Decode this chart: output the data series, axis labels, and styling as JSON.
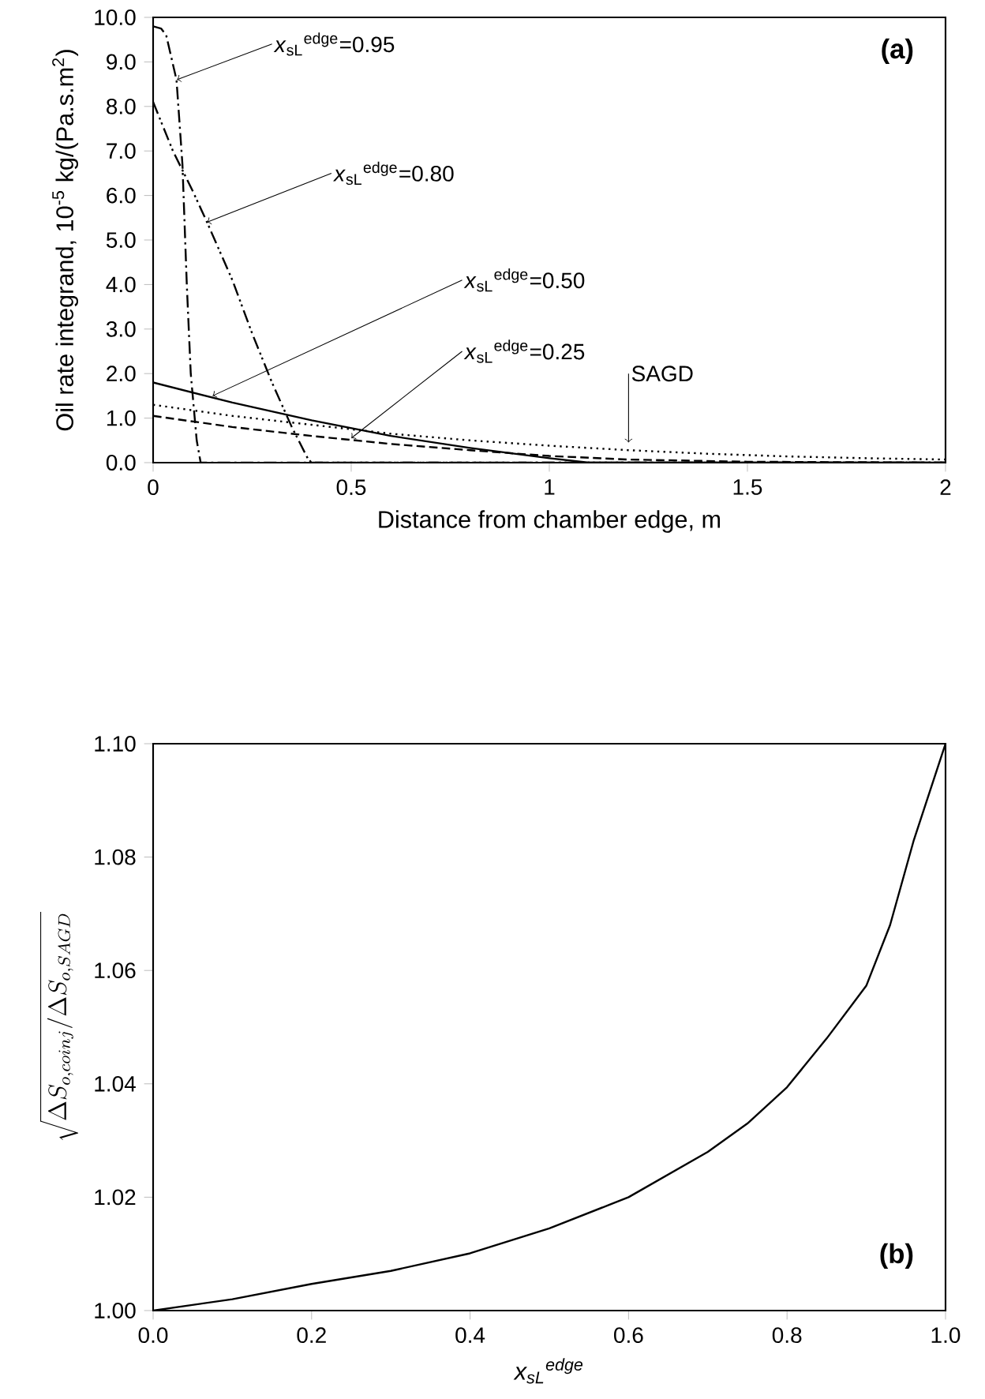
{
  "chart_data": [
    {
      "type": "line",
      "xlabel": "Distance from chamber edge, m",
      "ylabel": "Oil rate integrand, 10$^{-5}$ kg/(Pa.s.m$^{2}$)",
      "xlim": [
        0,
        2
      ],
      "ylim": [
        0,
        10
      ],
      "xticks": [
        0,
        0.5,
        1,
        1.5,
        2
      ],
      "yticks": [
        {
          "value": 0,
          "label": "0.0"
        },
        {
          "value": 1,
          "label": "1.0"
        },
        {
          "value": 2,
          "label": "2.0"
        },
        {
          "value": 3,
          "label": "3.0"
        },
        {
          "value": 4,
          "label": "4.0"
        },
        {
          "value": 5,
          "label": "5.0"
        },
        {
          "value": 6,
          "label": "6.0"
        },
        {
          "value": 7,
          "label": "7.0"
        },
        {
          "value": 8,
          "label": "8.0"
        },
        {
          "value": 9,
          "label": "9.0"
        },
        {
          "value": 10,
          "label": "10.0"
        }
      ],
      "series": [
        {
          "color": "#000000",
          "line_style": "dashdot",
          "x": [
            0,
            0.02,
            0.033,
            0.059,
            0.074,
            0.085,
            0.095,
            0.11,
            0.12,
            2
          ],
          "values": [
            9.8,
            9.75,
            9.6,
            8.6,
            6.7,
            4.0,
            2.0,
            0.5,
            0,
            0
          ]
        },
        {
          "color": "#000000",
          "line_style": "dashdotdot",
          "x": [
            0,
            0.05,
            0.1,
            0.136,
            0.2,
            0.25,
            0.3,
            0.35,
            0.39,
            0.4,
            2
          ],
          "values": [
            8.1,
            7.0,
            6.1,
            5.4,
            4.1,
            2.9,
            1.8,
            0.8,
            0.1,
            0,
            0
          ]
        },
        {
          "color": "#000000",
          "line_style": "solid",
          "x": [
            0,
            0.2,
            0.4,
            0.6,
            0.8,
            1.0,
            1.1,
            2
          ],
          "values": [
            1.8,
            1.35,
            0.95,
            0.6,
            0.33,
            0.1,
            0,
            0
          ]
        },
        {
          "color": "#000000",
          "line_style": "dashed",
          "x": [
            0,
            0.2,
            0.4,
            0.6,
            0.8,
            1.0,
            1.2,
            1.5,
            2
          ],
          "values": [
            1.05,
            0.8,
            0.6,
            0.42,
            0.28,
            0.15,
            0.07,
            0.02,
            0
          ]
        },
        {
          "color": "#000000",
          "line_style": "dotted",
          "x": [
            0,
            0.2,
            0.4,
            0.6,
            0.8,
            1.0,
            1.2,
            1.4,
            1.6,
            1.8,
            2
          ],
          "values": [
            1.3,
            1.05,
            0.85,
            0.65,
            0.5,
            0.38,
            0.28,
            0.2,
            0.14,
            0.1,
            0.07
          ]
        }
      ],
      "annotations": [
        {
          "text": "*x*$_{sL}$$^{edge}$=0.95",
          "x": 0.06,
          "y": 8.6
        },
        {
          "text": "*x*$_{sL}$$^{edge}$=0.80",
          "x": 0.136,
          "y": 5.4
        },
        {
          "text": "*x*$_{sL}$$^{edge}$=0.50",
          "x": 0.15,
          "y": 1.5
        },
        {
          "text": "*x*$_{sL}$$^{edge}$=0.25",
          "x": 0.5,
          "y": 0.55
        },
        {
          "text": "SAGD",
          "x": 1.2,
          "y": 0.45
        },
        "(a)"
      ]
    },
    {
      "type": "line",
      "xlabel": "x$_{sL}$$^{edge}$",
      "ylabel": "\\sqrt{\\Delta S_{o,coinj}/\\Delta S_{o,SAGD}}",
      "xlim": [
        0,
        1
      ],
      "ylim": [
        1.0,
        1.1
      ],
      "xticks": [
        {
          "value": 0,
          "label": "0.0"
        },
        0.2,
        0.4,
        0.6,
        0.8,
        {
          "value": 1,
          "label": "1.0"
        }
      ],
      "yticks": [
        {
          "value": 1.0,
          "label": "1.00"
        },
        1.02,
        1.04,
        1.06,
        1.08,
        {
          "value": 1.1,
          "label": "1.10"
        }
      ],
      "series": [
        {
          "color": "#000000",
          "line_style": "solid",
          "x": [
            0,
            0.1,
            0.2,
            0.3,
            0.4,
            0.5,
            0.6,
            0.7,
            0.75,
            0.8,
            0.85,
            0.9,
            0.93,
            0.96,
            1.0
          ],
          "values": [
            1.0,
            1.002,
            1.0047,
            1.007,
            1.0101,
            1.0145,
            1.02,
            1.028,
            1.033,
            1.0394,
            1.048,
            1.0573,
            1.068,
            1.083,
            1.1
          ]
        }
      ],
      "annotations": [
        "(b)"
      ]
    }
  ]
}
